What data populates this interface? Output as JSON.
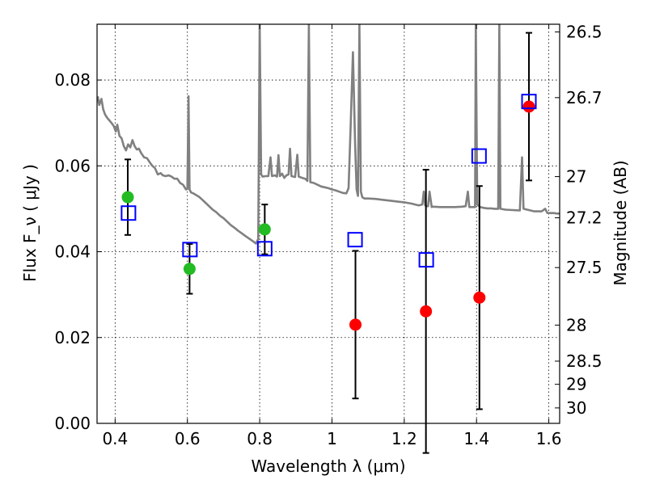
{
  "chart_data": {
    "type": "scatter",
    "xlabel": "Wavelength  λ (μm)",
    "ylabel": "Flux  F_ν  ( μJy )",
    "ylabel_right": "Magnitude (AB)",
    "xlim": [
      0.35,
      1.63
    ],
    "ylim": [
      0.0,
      0.093
    ],
    "x_ticks": [
      0.4,
      0.6,
      0.8,
      1.0,
      1.2,
      1.4,
      1.6
    ],
    "x_tick_labels": [
      "0.4",
      "0.6",
      "0.8",
      "1",
      "1.2",
      "1.4",
      "1.6"
    ],
    "y_ticks": [
      0.0,
      0.02,
      0.04,
      0.06,
      0.08
    ],
    "y_tick_labels": [
      "0.00",
      "0.02",
      "0.04",
      "0.06",
      "0.08"
    ],
    "right_ticks": [
      {
        "label": "26.5",
        "flux": 0.0912
      },
      {
        "label": "26.7",
        "flux": 0.0759
      },
      {
        "label": "27",
        "flux": 0.0575
      },
      {
        "label": "27.2",
        "flux": 0.0479
      },
      {
        "label": "27.5",
        "flux": 0.0363
      },
      {
        "label": "28",
        "flux": 0.0229
      },
      {
        "label": "28.5",
        "flux": 0.0145
      },
      {
        "label": "29",
        "flux": 0.0091
      },
      {
        "label": "30",
        "flux": 0.0036
      }
    ],
    "grid": true,
    "series": [
      {
        "marker": "circle",
        "color": "#22bb22",
        "points": [
          {
            "x": 0.435,
            "y": 0.0527,
            "err_lo": 0.0088,
            "err_hi": 0.0088
          },
          {
            "x": 0.606,
            "y": 0.036,
            "err_lo": 0.0058,
            "err_hi": 0.0058
          },
          {
            "x": 0.814,
            "y": 0.0452,
            "err_lo": 0.0058,
            "err_hi": 0.0058
          }
        ]
      },
      {
        "marker": "circle",
        "color": "#ff0000",
        "points": [
          {
            "x": 1.065,
            "y": 0.023,
            "err_lo": 0.0172,
            "err_hi": 0.0172
          },
          {
            "x": 1.26,
            "y": 0.0261,
            "err_lo": 0.033,
            "err_hi": 0.033
          },
          {
            "x": 1.408,
            "y": 0.0293,
            "err_lo": 0.026,
            "err_hi": 0.026
          },
          {
            "x": 1.545,
            "y": 0.0738,
            "err_lo": 0.0172,
            "err_hi": 0.0172
          }
        ]
      },
      {
        "marker": "square",
        "color": "#0000ff",
        "points": [
          {
            "x": 0.437,
            "y": 0.049
          },
          {
            "x": 0.607,
            "y": 0.0405
          },
          {
            "x": 0.814,
            "y": 0.0407
          },
          {
            "x": 1.064,
            "y": 0.0428
          },
          {
            "x": 1.261,
            "y": 0.0381
          },
          {
            "x": 1.407,
            "y": 0.0623
          },
          {
            "x": 1.545,
            "y": 0.075
          }
        ]
      },
      {
        "marker": "line",
        "color": "#808080",
        "points": [
          [
            0.352,
            0.0762
          ],
          [
            0.356,
            0.0742
          ],
          [
            0.362,
            0.0756
          ],
          [
            0.367,
            0.0732
          ],
          [
            0.372,
            0.072
          ],
          [
            0.378,
            0.0712
          ],
          [
            0.384,
            0.0706
          ],
          [
            0.39,
            0.07
          ],
          [
            0.396,
            0.0693
          ],
          [
            0.402,
            0.068
          ],
          [
            0.406,
            0.0696
          ],
          [
            0.412,
            0.067
          ],
          [
            0.418,
            0.0664
          ],
          [
            0.424,
            0.0646
          ],
          [
            0.43,
            0.0636
          ],
          [
            0.436,
            0.065
          ],
          [
            0.442,
            0.0643
          ],
          [
            0.448,
            0.066
          ],
          [
            0.454,
            0.0646
          ],
          [
            0.46,
            0.0638
          ],
          [
            0.466,
            0.064
          ],
          [
            0.472,
            0.063
          ],
          [
            0.48,
            0.062
          ],
          [
            0.488,
            0.0618
          ],
          [
            0.496,
            0.0608
          ],
          [
            0.503,
            0.06
          ],
          [
            0.51,
            0.0595
          ],
          [
            0.518,
            0.058
          ],
          [
            0.526,
            0.0583
          ],
          [
            0.532,
            0.0578
          ],
          [
            0.54,
            0.0576
          ],
          [
            0.548,
            0.0578
          ],
          [
            0.556,
            0.0575
          ],
          [
            0.564,
            0.057
          ],
          [
            0.572,
            0.057
          ],
          [
            0.58,
            0.056
          ],
          [
            0.588,
            0.0556
          ],
          [
            0.596,
            0.0545
          ],
          [
            0.6,
            0.0546
          ],
          [
            0.603,
            0.0762
          ],
          [
            0.606,
            0.0545
          ],
          [
            0.61,
            0.0538
          ],
          [
            0.616,
            0.0536
          ],
          [
            0.624,
            0.0532
          ],
          [
            0.632,
            0.0528
          ],
          [
            0.64,
            0.0522
          ],
          [
            0.65,
            0.0514
          ],
          [
            0.66,
            0.0506
          ],
          [
            0.67,
            0.0498
          ],
          [
            0.68,
            0.0492
          ],
          [
            0.69,
            0.0484
          ],
          [
            0.7,
            0.0478
          ],
          [
            0.71,
            0.047
          ],
          [
            0.72,
            0.0462
          ],
          [
            0.73,
            0.0456
          ],
          [
            0.74,
            0.0449
          ],
          [
            0.75,
            0.0443
          ],
          [
            0.76,
            0.0437
          ],
          [
            0.77,
            0.0431
          ],
          [
            0.78,
            0.0425
          ],
          [
            0.79,
            0.0419
          ],
          [
            0.796,
            0.043
          ],
          [
            0.8,
            0.093
          ],
          [
            0.804,
            0.058
          ],
          [
            0.808,
            0.0575
          ],
          [
            0.816,
            0.0576
          ],
          [
            0.824,
            0.0576
          ],
          [
            0.83,
            0.062
          ],
          [
            0.834,
            0.0576
          ],
          [
            0.842,
            0.0578
          ],
          [
            0.848,
            0.0575
          ],
          [
            0.852,
            0.0625
          ],
          [
            0.856,
            0.0576
          ],
          [
            0.862,
            0.0582
          ],
          [
            0.868,
            0.0572
          ],
          [
            0.874,
            0.0578
          ],
          [
            0.88,
            0.058
          ],
          [
            0.884,
            0.064
          ],
          [
            0.888,
            0.0576
          ],
          [
            0.898,
            0.0574
          ],
          [
            0.904,
            0.0626
          ],
          [
            0.908,
            0.0575
          ],
          [
            0.918,
            0.0572
          ],
          [
            0.926,
            0.057
          ],
          [
            0.932,
            0.0565
          ],
          [
            0.936,
            0.093
          ],
          [
            0.94,
            0.0562
          ],
          [
            0.95,
            0.056
          ],
          [
            0.96,
            0.0556
          ],
          [
            0.97,
            0.0552
          ],
          [
            0.98,
            0.055
          ],
          [
            0.99,
            0.0548
          ],
          [
            1.0,
            0.0545
          ],
          [
            1.01,
            0.0543
          ],
          [
            1.02,
            0.054
          ],
          [
            1.03,
            0.0537
          ],
          [
            1.04,
            0.0536
          ],
          [
            1.046,
            0.0548
          ],
          [
            1.052,
            0.07
          ],
          [
            1.058,
            0.0865
          ],
          [
            1.064,
            0.065
          ],
          [
            1.068,
            0.0545
          ],
          [
            1.072,
            0.053
          ],
          [
            1.076,
            0.093
          ],
          [
            1.08,
            0.054
          ],
          [
            1.084,
            0.0527
          ],
          [
            1.09,
            0.0524
          ],
          [
            1.1,
            0.0524
          ],
          [
            1.12,
            0.0523
          ],
          [
            1.14,
            0.0521
          ],
          [
            1.16,
            0.0519
          ],
          [
            1.18,
            0.0517
          ],
          [
            1.2,
            0.0515
          ],
          [
            1.22,
            0.0512
          ],
          [
            1.24,
            0.0508
          ],
          [
            1.25,
            0.051
          ],
          [
            1.254,
            0.054
          ],
          [
            1.258,
            0.0508
          ],
          [
            1.262,
            0.0506
          ],
          [
            1.266,
            0.0506
          ],
          [
            1.27,
            0.054
          ],
          [
            1.276,
            0.0504
          ],
          [
            1.28,
            0.0505
          ],
          [
            1.3,
            0.0504
          ],
          [
            1.32,
            0.0504
          ],
          [
            1.34,
            0.0504
          ],
          [
            1.36,
            0.0505
          ],
          [
            1.37,
            0.0506
          ],
          [
            1.376,
            0.054
          ],
          [
            1.38,
            0.0504
          ],
          [
            1.39,
            0.0504
          ],
          [
            1.396,
            0.0504
          ],
          [
            1.398,
            0.093
          ],
          [
            1.402,
            0.051
          ],
          [
            1.41,
            0.0504
          ],
          [
            1.42,
            0.0502
          ],
          [
            1.43,
            0.0501
          ],
          [
            1.44,
            0.0501
          ],
          [
            1.45,
            0.05
          ],
          [
            1.46,
            0.05
          ],
          [
            1.463,
            0.093
          ],
          [
            1.466,
            0.05
          ],
          [
            1.48,
            0.0498
          ],
          [
            1.5,
            0.0497
          ],
          [
            1.52,
            0.0496
          ],
          [
            1.526,
            0.062
          ],
          [
            1.53,
            0.05
          ],
          [
            1.54,
            0.0498
          ],
          [
            1.56,
            0.0494
          ],
          [
            1.58,
            0.0494
          ],
          [
            1.59,
            0.05
          ],
          [
            1.596,
            0.049
          ],
          [
            1.604,
            0.049
          ],
          [
            1.614,
            0.049
          ],
          [
            1.622,
            0.0489
          ],
          [
            1.63,
            0.0489
          ]
        ]
      }
    ]
  }
}
